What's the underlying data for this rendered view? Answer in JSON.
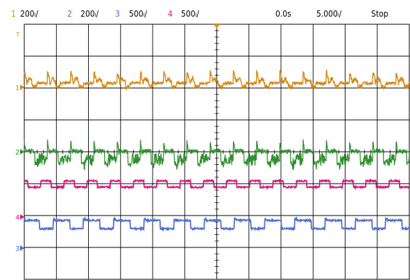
{
  "status_bar": {
    "ch1": {
      "number": "1",
      "scale": "200ₗ/",
      "color": "#d98c00"
    },
    "ch2": {
      "number": "2",
      "scale": "200ₗ/",
      "color": "#2aa02a"
    },
    "ch3": {
      "number": "3",
      "scale": "500ₗ/",
      "color": "#4c6bd6"
    },
    "ch4": {
      "number": "4",
      "scale": "500ₗ/",
      "color": "#e0157a"
    },
    "time_offset": "0.0s",
    "time_scale": "5.000ₗ/",
    "run_state": "Stop"
  },
  "markers": {
    "trigger_level": "T",
    "ch1": "1",
    "ch2": "2",
    "ch3": "3",
    "ch4": "4"
  },
  "colors": {
    "ch1": "#d6880e",
    "ch2": "#2f8f2f",
    "ch3": "#4d6fcf",
    "ch4": "#d21a78",
    "grid": "#000000",
    "trigger": "#e8920c"
  },
  "chart_data": {
    "type": "line",
    "x": {
      "divisions": 12,
      "per_division": "5.000ₗ/"
    },
    "y": {
      "divisions": 8
    },
    "grid": true,
    "series": []
  }
}
